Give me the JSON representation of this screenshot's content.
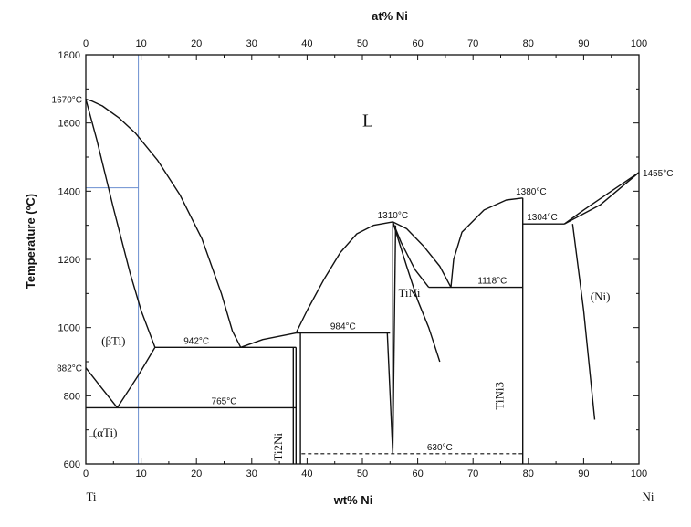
{
  "chart_data": {
    "type": "line",
    "title": "",
    "xlabel": "wt% Ni",
    "x2label": "at% Ni",
    "ylabel": "Temperature (ºC)",
    "xlim": [
      0,
      100
    ],
    "ylim": [
      600,
      1800
    ],
    "x_ticks": [
      "0",
      "10",
      "20",
      "30",
      "40",
      "50",
      "60",
      "70",
      "80",
      "90",
      "100"
    ],
    "x2_ticks": [
      "0",
      "10",
      "20",
      "30",
      "40",
      "50",
      "60",
      "70",
      "80",
      "90",
      "100"
    ],
    "y_ticks": [
      "600",
      "800",
      "1000",
      "1200",
      "1400",
      "1600",
      "1800"
    ],
    "end_labels": {
      "left": "Ti",
      "right": "Ni"
    },
    "temperature_labels": [
      {
        "text": "1670°C",
        "x": 0,
        "y": 1670
      },
      {
        "text": "1455°C",
        "x": 100,
        "y": 1455
      },
      {
        "text": "1380°C",
        "x": 80.5,
        "y": 1380
      },
      {
        "text": "1310°C",
        "x": 55.5,
        "y": 1310
      },
      {
        "text": "1304°C",
        "x": 82.5,
        "y": 1304
      },
      {
        "text": "1118°C",
        "x": 73.5,
        "y": 1118
      },
      {
        "text": "984°C",
        "x": 46.5,
        "y": 984
      },
      {
        "text": "942°C",
        "x": 20,
        "y": 942
      },
      {
        "text": "882°C",
        "x": 0,
        "y": 882
      },
      {
        "text": "765°C",
        "x": 25,
        "y": 765
      },
      {
        "text": "630°C",
        "x": 64,
        "y": 630
      }
    ],
    "phase_labels": [
      {
        "text": "L",
        "x": 51,
        "y": 1590
      },
      {
        "text": "(βTi)",
        "x": 5,
        "y": 950
      },
      {
        "text": "(αTi)",
        "x": 3.5,
        "y": 680
      },
      {
        "text": "TiNi",
        "x": 58.5,
        "y": 1090
      },
      {
        "text": "(Ni)",
        "x": 93,
        "y": 1080
      },
      {
        "text": "Ti2Ni",
        "x": 35.5,
        "y": 650
      },
      {
        "text": "TiNi3",
        "x": 75.5,
        "y": 800
      }
    ],
    "series": [
      {
        "values": [
          [
            0,
            1670
          ],
          [
            1,
            1665
          ],
          [
            3,
            1650
          ],
          [
            6,
            1615
          ],
          [
            9,
            1570
          ],
          [
            13,
            1490
          ],
          [
            17,
            1390
          ],
          [
            21,
            1260
          ],
          [
            24.5,
            1100
          ],
          [
            26.5,
            990
          ],
          [
            28,
            942
          ]
        ]
      },
      {
        "values": [
          [
            0,
            1670
          ],
          [
            2,
            1550
          ],
          [
            5,
            1350
          ],
          [
            8,
            1160
          ],
          [
            10,
            1050
          ],
          [
            12.5,
            942
          ]
        ]
      },
      {
        "values": [
          [
            12.5,
            942
          ],
          [
            9.5,
            860
          ],
          [
            7.5,
            810
          ],
          [
            5.7,
            765
          ]
        ]
      },
      {
        "values": [
          [
            0,
            882
          ],
          [
            2.5,
            830
          ],
          [
            5.7,
            765
          ]
        ]
      },
      {
        "values": [
          [
            12.5,
            942
          ],
          [
            38,
            942
          ]
        ]
      },
      {
        "values": [
          [
            28,
            942
          ],
          [
            32,
            965
          ],
          [
            38,
            984
          ]
        ]
      },
      {
        "values": [
          [
            0,
            765
          ],
          [
            38,
            765
          ]
        ]
      },
      {
        "values": [
          [
            38,
            984
          ],
          [
            55,
            984
          ]
        ]
      },
      {
        "values": [
          [
            38,
            984
          ],
          [
            40,
            1050
          ],
          [
            43,
            1140
          ],
          [
            46,
            1220
          ],
          [
            49,
            1275
          ],
          [
            52,
            1300
          ],
          [
            55.5,
            1310
          ]
        ]
      },
      {
        "values": [
          [
            55.5,
            1310
          ],
          [
            58,
            1290
          ],
          [
            61,
            1240
          ],
          [
            64,
            1180
          ],
          [
            66,
            1118
          ]
        ]
      },
      {
        "values": [
          [
            55.5,
            1310
          ],
          [
            57,
            1250
          ],
          [
            59.5,
            1170
          ],
          [
            62,
            1118
          ]
        ]
      },
      {
        "values": [
          [
            55.5,
            1310
          ],
          [
            58,
            1180
          ],
          [
            60,
            1080
          ],
          [
            62,
            1000
          ],
          [
            63,
            950
          ],
          [
            64,
            900
          ]
        ]
      },
      {
        "values": [
          [
            55.5,
            1310
          ],
          [
            55.5,
            630
          ]
        ]
      },
      {
        "values": [
          [
            54.5,
            984
          ],
          [
            55.5,
            630
          ]
        ]
      },
      {
        "values": [
          [
            56,
            1300
          ],
          [
            55.5,
            630
          ]
        ]
      },
      {
        "values": [
          [
            62,
            1118
          ],
          [
            79,
            1118
          ]
        ]
      },
      {
        "values": [
          [
            66,
            1118
          ],
          [
            66.5,
            1200
          ],
          [
            68,
            1280
          ],
          [
            72,
            1345
          ],
          [
            76,
            1374
          ],
          [
            79,
            1380
          ]
        ]
      },
      {
        "values": [
          [
            79,
            1380
          ],
          [
            79,
            600
          ]
        ]
      },
      {
        "values": [
          [
            79,
            1304
          ],
          [
            86.5,
            1304
          ]
        ]
      },
      {
        "values": [
          [
            86.5,
            1304
          ],
          [
            90,
            1345
          ],
          [
            95,
            1400
          ],
          [
            100,
            1455
          ]
        ]
      },
      {
        "values": [
          [
            86.5,
            1304
          ],
          [
            93,
            1360
          ],
          [
            100,
            1455
          ]
        ]
      },
      {
        "values": [
          [
            88,
            1304
          ],
          [
            90,
            1050
          ],
          [
            92,
            730
          ]
        ]
      },
      {
        "values": [
          [
            38,
            942
          ],
          [
            38,
            600
          ]
        ]
      },
      {
        "values": [
          [
            38.8,
            984
          ],
          [
            38.8,
            600
          ]
        ]
      },
      {
        "values": [
          [
            37.5,
            942
          ],
          [
            37.5,
            600
          ]
        ]
      }
    ],
    "dashed_lines": [
      {
        "values": [
          [
            39,
            630
          ],
          [
            79,
            630
          ]
        ]
      }
    ],
    "guide_lines": [
      {
        "values": [
          [
            9.5,
            1800
          ],
          [
            9.5,
            600
          ]
        ]
      },
      {
        "values": [
          [
            0,
            1410
          ],
          [
            9.5,
            1410
          ]
        ]
      }
    ],
    "grid": false
  }
}
